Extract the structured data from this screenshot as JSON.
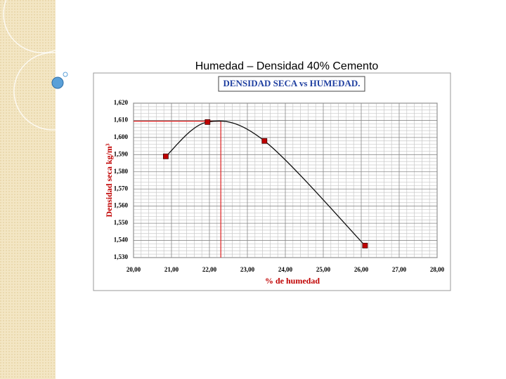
{
  "slide_title": "Humedad – Densidad 40% Cemento",
  "chart_data": {
    "type": "line",
    "title": "DENSIDAD SECA vs HUMEDAD.",
    "x_label": "% de humedad",
    "y_label": "Densidad seca kg/m³",
    "x": [
      20.85,
      21.95,
      23.45,
      26.1
    ],
    "series": [
      {
        "color": "#c00000",
        "values": [
          1589,
          1609,
          1598,
          1537
        ]
      }
    ],
    "optimum": {
      "x": 22.3,
      "y": 1609.5,
      "color": "#e03030"
    },
    "xlim": [
      20,
      28
    ],
    "ylim": [
      1530,
      1620
    ],
    "xticks": [
      {
        "value": 20,
        "label": "20,00"
      },
      {
        "value": 21,
        "label": "21,00"
      },
      {
        "value": 22,
        "label": "22,00"
      },
      {
        "value": 23,
        "label": "23,00"
      },
      {
        "value": 24,
        "label": "24,00"
      },
      {
        "value": 25,
        "label": "25,00"
      },
      {
        "value": 26,
        "label": "26,00"
      },
      {
        "value": 27,
        "label": "27,00"
      },
      {
        "value": 28,
        "label": "28,00"
      }
    ],
    "yticks": [
      {
        "value": 1530,
        "label": "1,530"
      },
      {
        "value": 1540,
        "label": "1,540"
      },
      {
        "value": 1550,
        "label": "1,550"
      },
      {
        "value": 1560,
        "label": "1,560"
      },
      {
        "value": 1570,
        "label": "1,570"
      },
      {
        "value": 1580,
        "label": "1,580"
      },
      {
        "value": 1590,
        "label": "1,590"
      },
      {
        "value": 1600,
        "label": "1,600"
      },
      {
        "value": 1610,
        "label": "1,610"
      },
      {
        "value": 1620,
        "label": "1,620"
      }
    ],
    "grid": true
  }
}
